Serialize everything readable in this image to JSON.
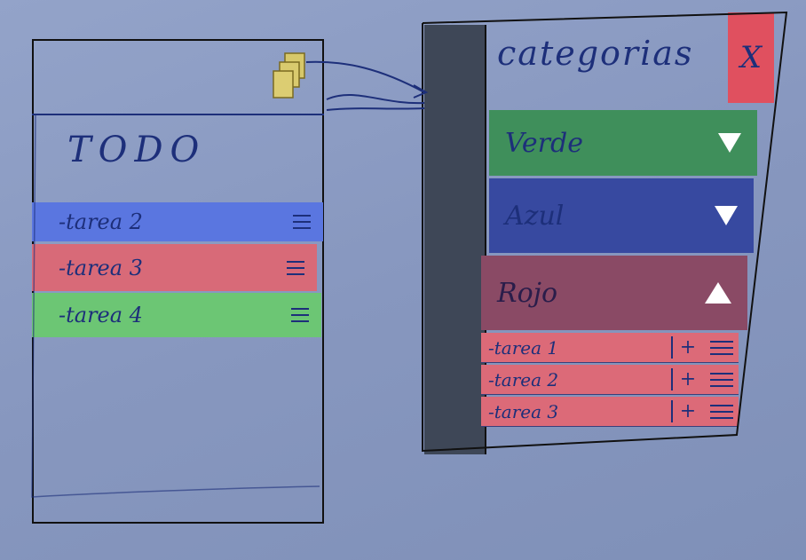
{
  "left_screen": {
    "title": "TODO",
    "tasks": [
      {
        "label": "-tarea 2",
        "color": "#5a76e0"
      },
      {
        "label": "-tarea 3",
        "color": "#d86a78"
      },
      {
        "label": "-tarea 4",
        "color": "#6cc674"
      }
    ],
    "folder_icon": "folder-stack-icon"
  },
  "right_panel": {
    "title": "categorias",
    "close_label": "X",
    "categories": [
      {
        "label": "Verde",
        "color": "#3f8f5b",
        "arrow": "down"
      },
      {
        "label": "Azul",
        "color": "#3749a0",
        "arrow": "down"
      },
      {
        "label": "Rojo",
        "color": "#8a4a65",
        "arrow": "up"
      }
    ],
    "subtasks": [
      {
        "label": "-tarea 1",
        "action": "+"
      },
      {
        "label": "-tarea 2",
        "action": "+"
      },
      {
        "label": "-tarea 3",
        "action": "+"
      }
    ]
  }
}
